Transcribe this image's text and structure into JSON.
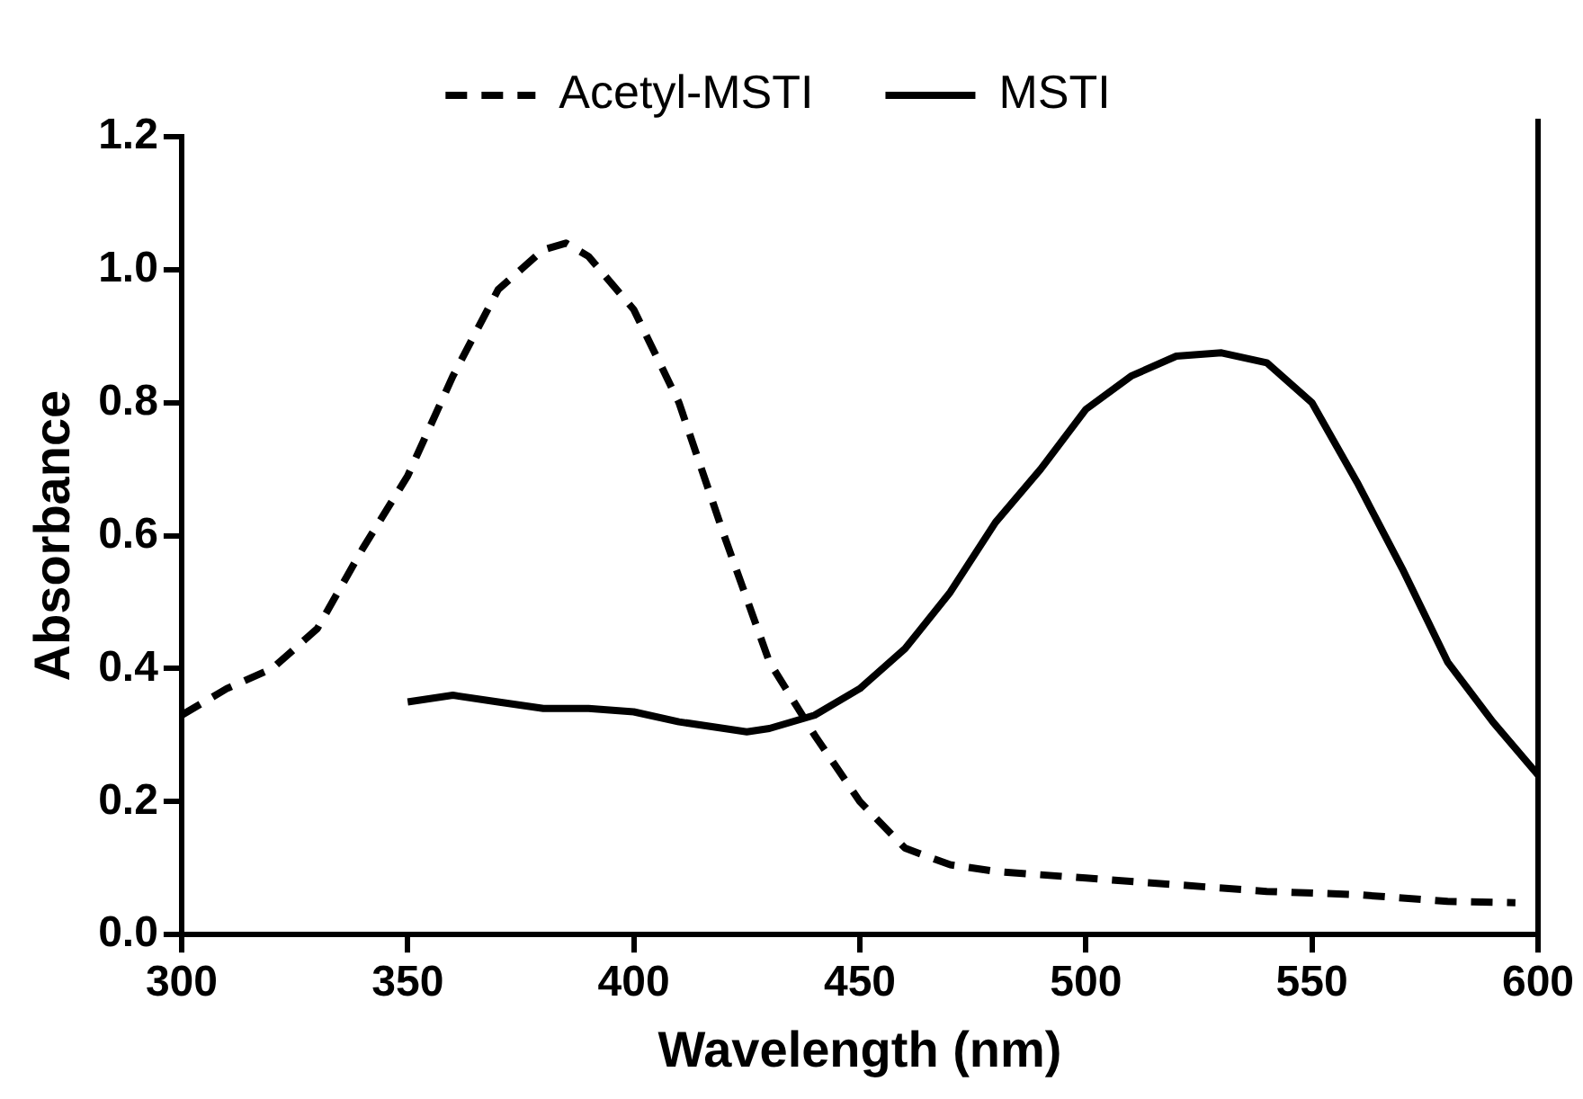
{
  "chart_data": {
    "type": "line",
    "xlabel": "Wavelength (nm)",
    "ylabel": "Absorbance",
    "xlim": [
      300,
      600
    ],
    "xticks": [
      300,
      350,
      400,
      450,
      500,
      550,
      600
    ],
    "ylim": [
      0,
      1.2
    ],
    "yticks": [
      {
        "value": 0,
        "label": "0.0"
      },
      0.2,
      0.4,
      0.6,
      0.8,
      {
        "value": 1,
        "label": "1.0"
      },
      1.2
    ],
    "grid": false,
    "legend": "top",
    "marker": "none",
    "series": [
      {
        "name": "Acetyl-MSTI",
        "color": "#000000",
        "line_style": "dashed",
        "x": [
          300,
          310,
          320,
          330,
          340,
          350,
          360,
          370,
          380,
          385,
          390,
          400,
          410,
          420,
          430,
          440,
          450,
          460,
          470,
          480,
          500,
          520,
          540,
          560,
          580,
          595
        ],
        "values": [
          0.33,
          0.37,
          0.4,
          0.46,
          0.58,
          0.69,
          0.84,
          0.97,
          1.03,
          1.04,
          1.02,
          0.94,
          0.8,
          0.6,
          0.41,
          0.3,
          0.2,
          0.13,
          0.105,
          0.095,
          0.085,
          0.075,
          0.065,
          0.06,
          0.05,
          0.048
        ]
      },
      {
        "name": "MSTI",
        "color": "#000000",
        "line_style": "solid",
        "x": [
          350,
          360,
          370,
          380,
          390,
          400,
          410,
          420,
          425,
          430,
          440,
          450,
          460,
          470,
          480,
          490,
          500,
          510,
          520,
          530,
          540,
          550,
          560,
          570,
          580,
          590,
          600
        ],
        "values": [
          0.35,
          0.36,
          0.35,
          0.34,
          0.34,
          0.335,
          0.32,
          0.31,
          0.305,
          0.31,
          0.33,
          0.37,
          0.43,
          0.515,
          0.62,
          0.7,
          0.79,
          0.84,
          0.87,
          0.875,
          0.86,
          0.8,
          0.68,
          0.55,
          0.41,
          0.32,
          0.24
        ]
      }
    ]
  }
}
